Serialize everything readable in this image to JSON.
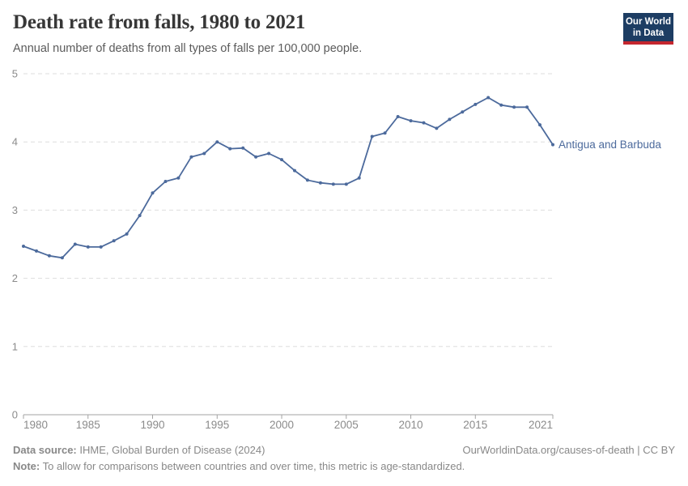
{
  "header": {
    "title": "Death rate from falls, 1980 to 2021",
    "subtitle": "Annual number of deaths from all types of falls per 100,000 people.",
    "logo": {
      "line1": "Our World",
      "line2": "in Data"
    }
  },
  "chart_data": {
    "type": "line",
    "title": "Death rate from falls, 1980 to 2021",
    "subtitle": "Annual number of deaths from all types of falls per 100,000 people.",
    "xlabel": "",
    "ylabel": "",
    "xlim": [
      1980,
      2021
    ],
    "ylim": [
      0,
      5
    ],
    "xticks": [
      1980,
      1985,
      1990,
      1995,
      2000,
      2005,
      2010,
      2015,
      2021
    ],
    "yticks": [
      0,
      1,
      2,
      3,
      4,
      5
    ],
    "grid": "horizontal-dashed",
    "legend_position": "end-of-line-label",
    "series": [
      {
        "name": "Antigua and Barbuda",
        "color": "#4C6A9C",
        "x": [
          1980,
          1981,
          1982,
          1983,
          1984,
          1985,
          1986,
          1987,
          1988,
          1989,
          1990,
          1991,
          1992,
          1993,
          1994,
          1995,
          1996,
          1997,
          1998,
          1999,
          2000,
          2001,
          2002,
          2003,
          2004,
          2005,
          2006,
          2007,
          2008,
          2009,
          2010,
          2011,
          2012,
          2013,
          2014,
          2015,
          2016,
          2017,
          2018,
          2019,
          2020,
          2021
        ],
        "values": [
          2.47,
          2.4,
          2.33,
          2.3,
          2.5,
          2.46,
          2.46,
          2.55,
          2.65,
          2.92,
          3.25,
          3.42,
          3.47,
          3.78,
          3.83,
          4.0,
          3.9,
          3.91,
          3.78,
          3.83,
          3.74,
          3.58,
          3.44,
          3.4,
          3.38,
          3.38,
          3.47,
          4.08,
          4.13,
          4.37,
          4.31,
          4.28,
          4.2,
          4.33,
          4.44,
          4.55,
          4.65,
          4.54,
          4.51,
          4.51,
          4.25,
          3.96
        ]
      }
    ]
  },
  "colors": {
    "line": "#4C6A9C",
    "entity_label": "#4C6A9C",
    "grid": "#dedede",
    "axis": "#a3a3a3",
    "tick_text": "#8b8b8b",
    "logo_bg": "#1d3d63",
    "logo_accent": "#c4262e"
  },
  "footer": {
    "source_label": "Data source:",
    "source_text": " IHME, Global Burden of Disease (2024)",
    "link_text": "OurWorldinData.org/causes-of-death | CC BY",
    "note_label": "Note:",
    "note_text": " To allow for comparisons between countries and over time, this metric is age-standardized."
  }
}
